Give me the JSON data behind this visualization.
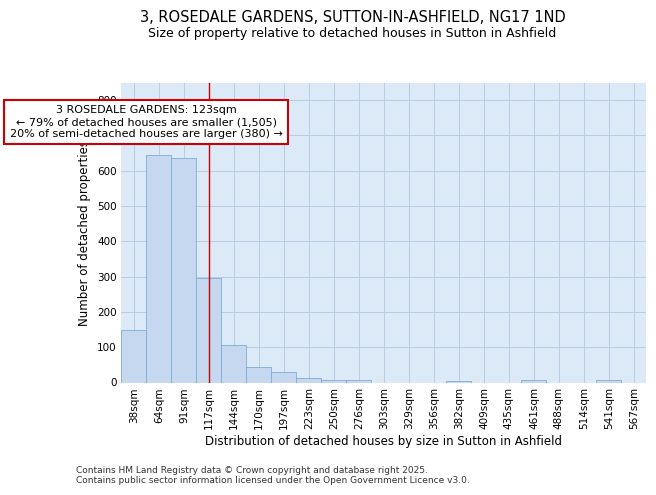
{
  "title_line1": "3, ROSEDALE GARDENS, SUTTON-IN-ASHFIELD, NG17 1ND",
  "title_line2": "Size of property relative to detached houses in Sutton in Ashfield",
  "xlabel": "Distribution of detached houses by size in Sutton in Ashfield",
  "ylabel": "Number of detached properties",
  "categories": [
    "38sqm",
    "64sqm",
    "91sqm",
    "117sqm",
    "144sqm",
    "170sqm",
    "197sqm",
    "223sqm",
    "250sqm",
    "276sqm",
    "303sqm",
    "329sqm",
    "356sqm",
    "382sqm",
    "409sqm",
    "435sqm",
    "461sqm",
    "488sqm",
    "514sqm",
    "541sqm",
    "567sqm"
  ],
  "values": [
    150,
    645,
    635,
    295,
    105,
    45,
    30,
    12,
    8,
    8,
    0,
    0,
    0,
    5,
    0,
    0,
    7,
    0,
    0,
    7,
    0
  ],
  "bar_color": "#c5d8f0",
  "bar_edge_color": "#7aadd4",
  "vline_x": 3,
  "vline_color": "#cc0000",
  "annotation_line1": "3 ROSEDALE GARDENS: 123sqm",
  "annotation_line2": "← 79% of detached houses are smaller (1,505)",
  "annotation_line3": "20% of semi-detached houses are larger (380) →",
  "annotation_box_color": "#ffffff",
  "annotation_box_edge_color": "#cc0000",
  "ylim": [
    0,
    850
  ],
  "yticks": [
    0,
    100,
    200,
    300,
    400,
    500,
    600,
    700,
    800
  ],
  "grid_color": "#b8cce4",
  "fig_bg_color": "#ffffff",
  "plot_bg_color": "#dce9f7",
  "footer_text": "Contains HM Land Registry data © Crown copyright and database right 2025.\nContains public sector information licensed under the Open Government Licence v3.0.",
  "title_fontsize": 10.5,
  "subtitle_fontsize": 9,
  "axis_label_fontsize": 8.5,
  "tick_fontsize": 7.5,
  "annotation_fontsize": 8,
  "footer_fontsize": 6.5
}
